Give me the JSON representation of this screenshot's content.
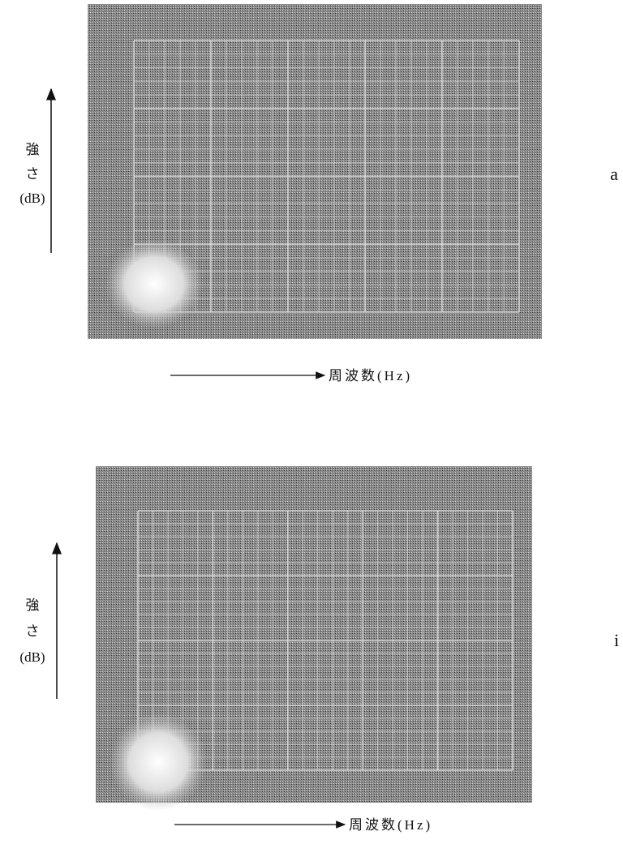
{
  "panels": [
    {
      "label": "a",
      "y_axis": {
        "line1": "強",
        "line2": "さ",
        "line3": "(dB)"
      },
      "x_axis": "周波数(Hz)"
    },
    {
      "label": "i",
      "y_axis": {
        "line1": "強",
        "line2": "さ",
        "line3": "(dB)"
      },
      "x_axis": "周波数(Hz)"
    }
  ]
}
